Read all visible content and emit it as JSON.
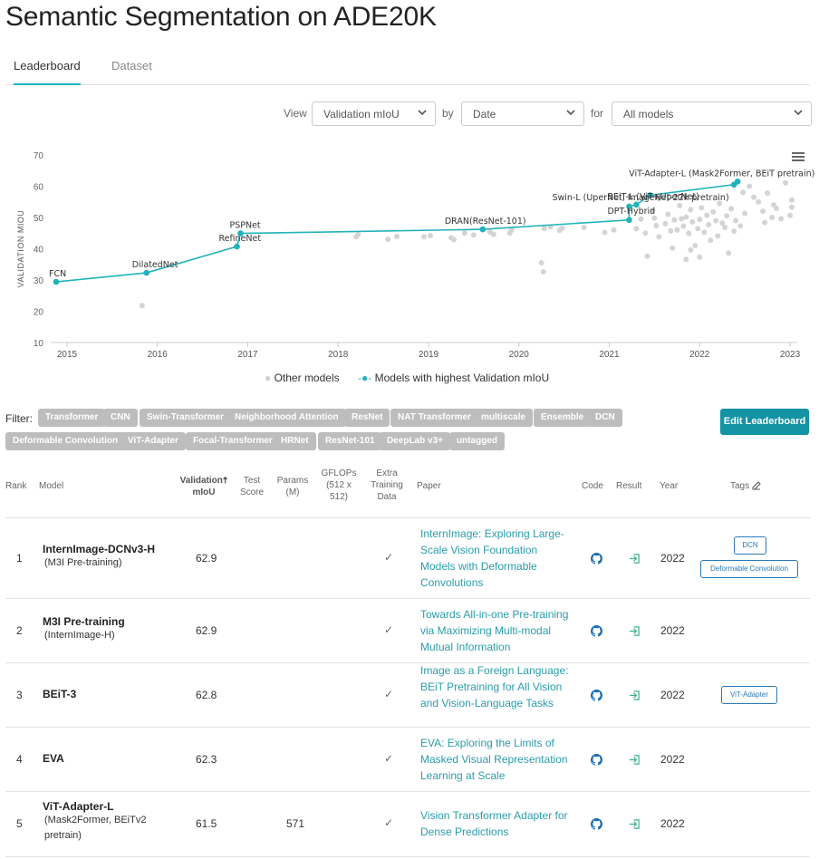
{
  "page": {
    "title": "Semantic Segmentation on ADE20K",
    "tabs": [
      "Leaderboard",
      "Dataset"
    ]
  },
  "controls": {
    "view_label": "View",
    "view_value": "Validation mIoU",
    "by_label": "by",
    "by_value": "Date",
    "for_label": "for",
    "for_value": "All models"
  },
  "legend": {
    "other": "Other models",
    "best": "Models with highest Validation mIoU"
  },
  "colors": {
    "accent": "#21b3ba",
    "other_dots": "#cfcfcf",
    "link": "#2a9dab",
    "button": "#1393a3"
  },
  "chart_data": {
    "type": "scatter",
    "ylabel": "VALIDATION MIOU",
    "xlabel": "",
    "ylim": [
      10,
      70
    ],
    "yticks": [
      10,
      20,
      30,
      40,
      50,
      60,
      70
    ],
    "xlim": [
      2014.82,
      2023.08
    ],
    "xticks": [
      2015,
      2016,
      2017,
      2018,
      2019,
      2020,
      2021,
      2022,
      2023
    ],
    "grid": false,
    "best_series": {
      "name": "Models with highest Validation mIoU",
      "points": [
        {
          "x": 2014.88,
          "y": 29.4,
          "label": "FCN"
        },
        {
          "x": 2015.88,
          "y": 32.3,
          "label": "DilatedNet"
        },
        {
          "x": 2016.88,
          "y": 40.7,
          "label": "RefineNet"
        },
        {
          "x": 2016.92,
          "y": 44.9,
          "label": "PSPNet"
        },
        {
          "x": 2019.6,
          "y": 46.2,
          "label": "DRAN(ResNet-101)"
        },
        {
          "x": 2021.22,
          "y": 49.2,
          "label": "DPT-Hybrid"
        },
        {
          "x": 2021.22,
          "y": 53.5,
          "label": "Swin-L (UperNet, ImageNet-22k pretrain)"
        },
        {
          "x": 2021.3,
          "y": 54.1,
          "label": "BEiT-L (ViT+UperNet)"
        },
        {
          "x": 2021.45,
          "y": 57.1,
          "label": ""
        },
        {
          "x": 2022.38,
          "y": 60.5,
          "label": ""
        },
        {
          "x": 2022.42,
          "y": 61.5,
          "label": "ViT-Adapter-L (Mask2Former, BEiT pretrain)"
        }
      ]
    },
    "other_series": {
      "name": "Other models",
      "points": [
        {
          "x": 2015.83,
          "y": 21.8
        },
        {
          "x": 2018.2,
          "y": 43.8
        },
        {
          "x": 2018.22,
          "y": 44.5
        },
        {
          "x": 2018.55,
          "y": 43.0
        },
        {
          "x": 2018.65,
          "y": 43.9
        },
        {
          "x": 2018.95,
          "y": 43.8
        },
        {
          "x": 2019.02,
          "y": 44.2
        },
        {
          "x": 2019.25,
          "y": 43.5
        },
        {
          "x": 2019.28,
          "y": 42.9
        },
        {
          "x": 2019.4,
          "y": 45.0
        },
        {
          "x": 2019.5,
          "y": 44.4
        },
        {
          "x": 2019.68,
          "y": 45.3
        },
        {
          "x": 2019.72,
          "y": 44.6
        },
        {
          "x": 2019.9,
          "y": 45.0
        },
        {
          "x": 2019.92,
          "y": 46.0
        },
        {
          "x": 2020.25,
          "y": 35.5
        },
        {
          "x": 2020.27,
          "y": 32.6
        },
        {
          "x": 2020.28,
          "y": 46.5
        },
        {
          "x": 2020.35,
          "y": 47.0
        },
        {
          "x": 2020.45,
          "y": 45.9
        },
        {
          "x": 2020.48,
          "y": 46.6
        },
        {
          "x": 2020.72,
          "y": 46.8
        },
        {
          "x": 2020.95,
          "y": 45.2
        },
        {
          "x": 2021.05,
          "y": 46.0
        },
        {
          "x": 2021.3,
          "y": 46.4
        },
        {
          "x": 2021.35,
          "y": 49.5
        },
        {
          "x": 2021.4,
          "y": 45.0
        },
        {
          "x": 2021.42,
          "y": 37.6
        },
        {
          "x": 2021.48,
          "y": 52.3
        },
        {
          "x": 2021.5,
          "y": 49.8
        },
        {
          "x": 2021.52,
          "y": 47.4
        },
        {
          "x": 2021.55,
          "y": 43.8
        },
        {
          "x": 2021.62,
          "y": 48.0
        },
        {
          "x": 2021.65,
          "y": 51.0
        },
        {
          "x": 2021.68,
          "y": 45.7
        },
        {
          "x": 2021.7,
          "y": 40.2
        },
        {
          "x": 2021.72,
          "y": 49.2
        },
        {
          "x": 2021.75,
          "y": 46.0
        },
        {
          "x": 2021.78,
          "y": 53.8
        },
        {
          "x": 2021.8,
          "y": 49.6
        },
        {
          "x": 2021.82,
          "y": 47.2
        },
        {
          "x": 2021.85,
          "y": 50.1
        },
        {
          "x": 2021.88,
          "y": 44.9
        },
        {
          "x": 2021.9,
          "y": 52.5
        },
        {
          "x": 2021.92,
          "y": 48.6
        },
        {
          "x": 2021.95,
          "y": 41.0
        },
        {
          "x": 2021.98,
          "y": 46.4
        },
        {
          "x": 2022.0,
          "y": 49.4
        },
        {
          "x": 2022.02,
          "y": 53.1
        },
        {
          "x": 2022.05,
          "y": 45.3
        },
        {
          "x": 2022.08,
          "y": 50.7
        },
        {
          "x": 2022.1,
          "y": 47.7
        },
        {
          "x": 2022.12,
          "y": 42.7
        },
        {
          "x": 2022.15,
          "y": 51.8
        },
        {
          "x": 2022.18,
          "y": 49.0
        },
        {
          "x": 2022.2,
          "y": 44.1
        },
        {
          "x": 2022.22,
          "y": 54.5
        },
        {
          "x": 2022.25,
          "y": 48.2
        },
        {
          "x": 2022.28,
          "y": 46.8
        },
        {
          "x": 2022.3,
          "y": 50.5
        },
        {
          "x": 2022.32,
          "y": 38.6
        },
        {
          "x": 2022.35,
          "y": 52.8
        },
        {
          "x": 2022.38,
          "y": 45.6
        },
        {
          "x": 2022.4,
          "y": 49.0
        },
        {
          "x": 2022.45,
          "y": 47.3
        },
        {
          "x": 2022.48,
          "y": 58.0
        },
        {
          "x": 2022.5,
          "y": 51.3
        },
        {
          "x": 2022.55,
          "y": 60.0
        },
        {
          "x": 2022.6,
          "y": 56.5
        },
        {
          "x": 2022.65,
          "y": 55.0
        },
        {
          "x": 2022.7,
          "y": 52.0
        },
        {
          "x": 2022.72,
          "y": 48.4
        },
        {
          "x": 2022.75,
          "y": 57.8
        },
        {
          "x": 2022.8,
          "y": 50.0
        },
        {
          "x": 2022.82,
          "y": 54.0
        },
        {
          "x": 2022.85,
          "y": 52.9
        },
        {
          "x": 2022.9,
          "y": 49.6
        },
        {
          "x": 2022.95,
          "y": 61.1
        },
        {
          "x": 2023.0,
          "y": 50.7
        },
        {
          "x": 2023.02,
          "y": 55.6
        },
        {
          "x": 2023.02,
          "y": 53.3
        },
        {
          "x": 2021.85,
          "y": 36.6
        },
        {
          "x": 2021.9,
          "y": 39.6
        },
        {
          "x": 2022.0,
          "y": 37.3
        },
        {
          "x": 2021.55,
          "y": 56.0
        }
      ]
    }
  },
  "filters": {
    "label": "Filter:",
    "chips": [
      "Transformer",
      "CNN",
      "Swin-Transformer",
      "Neighborhood Attention",
      "ResNet",
      "NAT Transformer",
      "multiscale",
      "Ensemble",
      "DCN",
      "Deformable Convolution",
      "ViT-Adapter",
      "Focal-Transformer",
      "HRNet",
      "ResNet-101",
      "DeepLab v3+",
      "untagged"
    ],
    "edit_button": "Edit Leaderboard"
  },
  "table": {
    "headers": {
      "rank": "Rank",
      "model": "Model",
      "val_miou_1": "Validation",
      "val_miou_2": "mIoU",
      "test_1": "Test",
      "test_2": "Score",
      "params_1": "Params",
      "params_2": "(M)",
      "gflops_1": "GFLOPs",
      "gflops_2": "(512 x",
      "gflops_3": "512)",
      "extra_1": "Extra",
      "extra_2": "Training",
      "extra_3": "Data",
      "paper": "Paper",
      "code": "Code",
      "result": "Result",
      "year": "Year",
      "tags": "Tags"
    },
    "rows": [
      {
        "rank": "1",
        "name": "InternImage-DCNv3-H",
        "sub": "(M3I Pre-training)",
        "miou": "62.9",
        "params": "",
        "check": "✓",
        "paper": "InternImage: Exploring Large-Scale Vision Foundation Models with Deformable Convolutions",
        "year": "2022",
        "tags": [
          "DCN",
          "Deformable Convolution"
        ]
      },
      {
        "rank": "2",
        "name": "M3I Pre-training",
        "sub": "(InternImage-H)",
        "miou": "62.9",
        "params": "",
        "check": "✓",
        "paper": "Towards All-in-one Pre-training via Maximizing Multi-modal Mutual Information",
        "year": "2022",
        "tags": []
      },
      {
        "rank": "3",
        "name": "BEiT-3",
        "sub": "",
        "miou": "62.8",
        "params": "",
        "check": "✓",
        "paper": "Image as a Foreign Language: BEiT Pretraining for All Vision and Vision-Language Tasks",
        "year": "2022",
        "tags": [
          "ViT-Adapter"
        ]
      },
      {
        "rank": "4",
        "name": "EVA",
        "sub": "",
        "miou": "62.3",
        "params": "",
        "check": "✓",
        "paper": "EVA: Exploring the Limits of Masked Visual Representation Learning at Scale",
        "year": "2022",
        "tags": []
      },
      {
        "rank": "5",
        "name": "ViT-Adapter-L",
        "sub": "(Mask2Former, BEiTv2 pretrain)",
        "miou": "61.5",
        "params": "571",
        "check": "✓",
        "paper": "Vision Transformer Adapter for Dense Predictions",
        "year": "2022",
        "tags": []
      }
    ]
  }
}
